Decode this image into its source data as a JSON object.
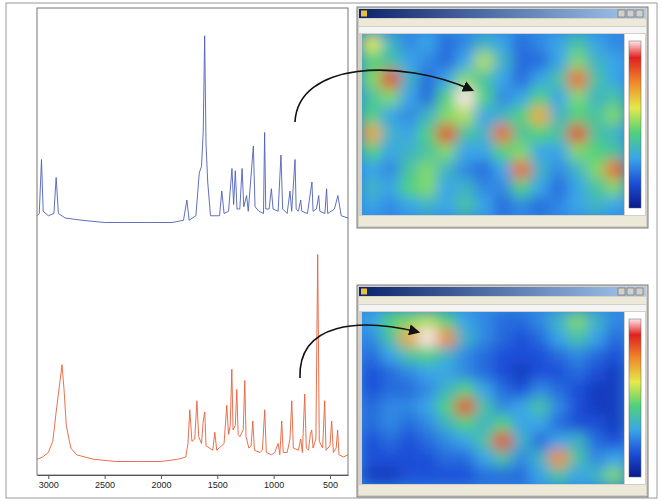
{
  "chart_data": [
    {
      "type": "line",
      "x": [
        3100,
        3080,
        3060,
        3045,
        3000,
        2950,
        2930,
        2910,
        2850,
        2700,
        2500,
        2300,
        2100,
        1900,
        1800,
        1770,
        1750,
        1690,
        1660,
        1640,
        1625,
        1612,
        1600,
        1585,
        1560,
        1480,
        1460,
        1440,
        1400,
        1370,
        1355,
        1340,
        1325,
        1300,
        1280,
        1265,
        1240,
        1225,
        1180,
        1165,
        1130,
        1090,
        1080,
        1070,
        1040,
        1020,
        1005,
        960,
        935,
        920,
        880,
        855,
        840,
        810,
        800,
        780,
        760,
        750,
        700,
        660,
        650,
        620,
        600,
        590,
        545,
        530,
        520,
        460,
        430,
        400,
        340
      ],
      "series": [
        {
          "color": "#4f5fb8",
          "values": [
            13,
            14,
            38,
            15,
            13,
            14,
            30,
            14,
            12,
            11,
            10,
            10,
            10,
            10,
            11,
            20,
            11,
            13,
            32,
            35,
            50,
            93,
            45,
            28,
            13,
            13,
            24,
            14,
            15,
            34,
            18,
            33,
            16,
            16,
            34,
            17,
            22,
            15,
            44,
            17,
            15,
            14,
            50,
            16,
            16,
            25,
            16,
            15,
            40,
            16,
            14,
            24,
            15,
            38,
            16,
            15,
            20,
            15,
            14,
            28,
            15,
            16,
            22,
            15,
            14,
            25,
            14,
            16,
            22,
            13,
            12
          ]
        }
      ],
      "xlim": [
        3100,
        340
      ],
      "ylim": [
        0,
        100
      ],
      "tick_labels": false
    },
    {
      "type": "line",
      "x": [
        3100,
        3050,
        3000,
        2960,
        2930,
        2900,
        2878,
        2860,
        2840,
        2800,
        2750,
        2600,
        2400,
        2200,
        2000,
        1850,
        1780,
        1760,
        1744,
        1725,
        1700,
        1681,
        1665,
        1640,
        1625,
        1611,
        1600,
        1540,
        1522,
        1505,
        1440,
        1416,
        1400,
        1385,
        1371,
        1360,
        1340,
        1327,
        1315,
        1300,
        1270,
        1256,
        1245,
        1220,
        1200,
        1185,
        1170,
        1120,
        1100,
        1079,
        1065,
        1020,
        990,
        960,
        945,
        928,
        915,
        880,
        855,
        839,
        825,
        780,
        760,
        745,
        724,
        710,
        690,
        675,
        662,
        650,
        625,
        609,
        595,
        565,
        547,
        535,
        500,
        485,
        470,
        445,
        432,
        420,
        380,
        340
      ],
      "series": [
        {
          "color": "#e8603a",
          "values": [
            7,
            8,
            10,
            15,
            28,
            40,
            49,
            38,
            22,
            12,
            9,
            7,
            6,
            6,
            6,
            7,
            8,
            14,
            29,
            15,
            16,
            33,
            17,
            14,
            24,
            28,
            13,
            11,
            19,
            11,
            14,
            31,
            18,
            22,
            47,
            20,
            22,
            38,
            18,
            17,
            20,
            42,
            17,
            12,
            13,
            24,
            11,
            10,
            11,
            29,
            10,
            9,
            10,
            14,
            9,
            24,
            10,
            10,
            16,
            33,
            12,
            11,
            16,
            10,
            36,
            12,
            11,
            18,
            20,
            12,
            16,
            98,
            15,
            12,
            33,
            11,
            13,
            24,
            10,
            12,
            20,
            9,
            8,
            9
          ]
        }
      ],
      "xlim": [
        3100,
        340
      ],
      "ylim": [
        0,
        100
      ],
      "xticks": [
        3000,
        2500,
        2000,
        1500,
        1000,
        500
      ],
      "tick_labels": "x"
    },
    {
      "type": "heatmap",
      "color_range": [
        0,
        1
      ],
      "cells": [
        [
          0.6,
          0.35,
          0.25,
          0.3,
          0.2,
          0.25,
          0.35,
          0.3,
          0.2,
          0.25,
          0.3,
          0.4,
          0.3,
          0.25
        ],
        [
          0.45,
          0.4,
          0.3,
          0.25,
          0.2,
          0.3,
          0.55,
          0.35,
          0.2,
          0.2,
          0.3,
          0.5,
          0.35,
          0.3
        ],
        [
          0.5,
          0.85,
          0.35,
          0.2,
          0.3,
          0.5,
          0.4,
          0.3,
          0.2,
          0.3,
          0.4,
          0.8,
          0.4,
          0.3
        ],
        [
          0.4,
          0.5,
          0.3,
          0.2,
          0.45,
          1.0,
          0.45,
          0.25,
          0.3,
          0.45,
          0.3,
          0.5,
          0.35,
          0.4
        ],
        [
          0.45,
          0.3,
          0.25,
          0.35,
          0.5,
          0.55,
          0.3,
          0.35,
          0.45,
          0.7,
          0.35,
          0.45,
          0.4,
          0.5
        ],
        [
          0.7,
          0.35,
          0.3,
          0.45,
          0.85,
          0.4,
          0.35,
          0.8,
          0.4,
          0.45,
          0.4,
          0.85,
          0.4,
          0.35
        ],
        [
          0.45,
          0.3,
          0.35,
          0.4,
          0.5,
          0.3,
          0.3,
          0.45,
          0.5,
          0.3,
          0.3,
          0.5,
          0.45,
          0.4
        ],
        [
          0.3,
          0.25,
          0.4,
          0.5,
          0.35,
          0.25,
          0.2,
          0.3,
          0.8,
          0.35,
          0.25,
          0.35,
          0.5,
          0.8
        ],
        [
          0.35,
          0.3,
          0.45,
          0.5,
          0.3,
          0.35,
          0.25,
          0.25,
          0.45,
          0.3,
          0.2,
          0.3,
          0.4,
          0.5
        ],
        [
          0.3,
          0.25,
          0.3,
          0.35,
          0.3,
          0.4,
          0.3,
          0.2,
          0.25,
          0.2,
          0.25,
          0.3,
          0.35,
          0.3
        ]
      ]
    },
    {
      "type": "heatmap",
      "color_range": [
        0,
        1
      ],
      "cells": [
        [
          0.3,
          0.45,
          0.5,
          0.55,
          0.45,
          0.3,
          0.25,
          0.2,
          0.2,
          0.25,
          0.35,
          0.5,
          0.35,
          0.25
        ],
        [
          0.25,
          0.4,
          0.7,
          1.0,
          0.75,
          0.35,
          0.25,
          0.2,
          0.15,
          0.2,
          0.3,
          0.4,
          0.3,
          0.2
        ],
        [
          0.2,
          0.3,
          0.4,
          0.45,
          0.35,
          0.25,
          0.2,
          0.15,
          0.15,
          0.15,
          0.2,
          0.25,
          0.2,
          0.15
        ],
        [
          0.15,
          0.2,
          0.25,
          0.3,
          0.3,
          0.25,
          0.2,
          0.15,
          0.1,
          0.15,
          0.15,
          0.2,
          0.15,
          0.1
        ],
        [
          0.15,
          0.2,
          0.2,
          0.25,
          0.35,
          0.45,
          0.3,
          0.2,
          0.15,
          0.25,
          0.2,
          0.15,
          0.1,
          0.1
        ],
        [
          0.2,
          0.25,
          0.25,
          0.3,
          0.45,
          0.85,
          0.4,
          0.25,
          0.3,
          0.4,
          0.25,
          0.15,
          0.1,
          0.1
        ],
        [
          0.2,
          0.25,
          0.2,
          0.25,
          0.35,
          0.45,
          0.35,
          0.45,
          0.3,
          0.3,
          0.2,
          0.15,
          0.15,
          0.1
        ],
        [
          0.15,
          0.2,
          0.15,
          0.2,
          0.25,
          0.3,
          0.4,
          0.85,
          0.35,
          0.2,
          0.3,
          0.35,
          0.2,
          0.15
        ],
        [
          0.15,
          0.15,
          0.15,
          0.15,
          0.2,
          0.2,
          0.3,
          0.4,
          0.25,
          0.35,
          0.75,
          0.4,
          0.25,
          0.3
        ],
        [
          0.1,
          0.1,
          0.15,
          0.15,
          0.15,
          0.15,
          0.2,
          0.2,
          0.2,
          0.3,
          0.4,
          0.3,
          0.35,
          0.5
        ]
      ]
    }
  ]
}
